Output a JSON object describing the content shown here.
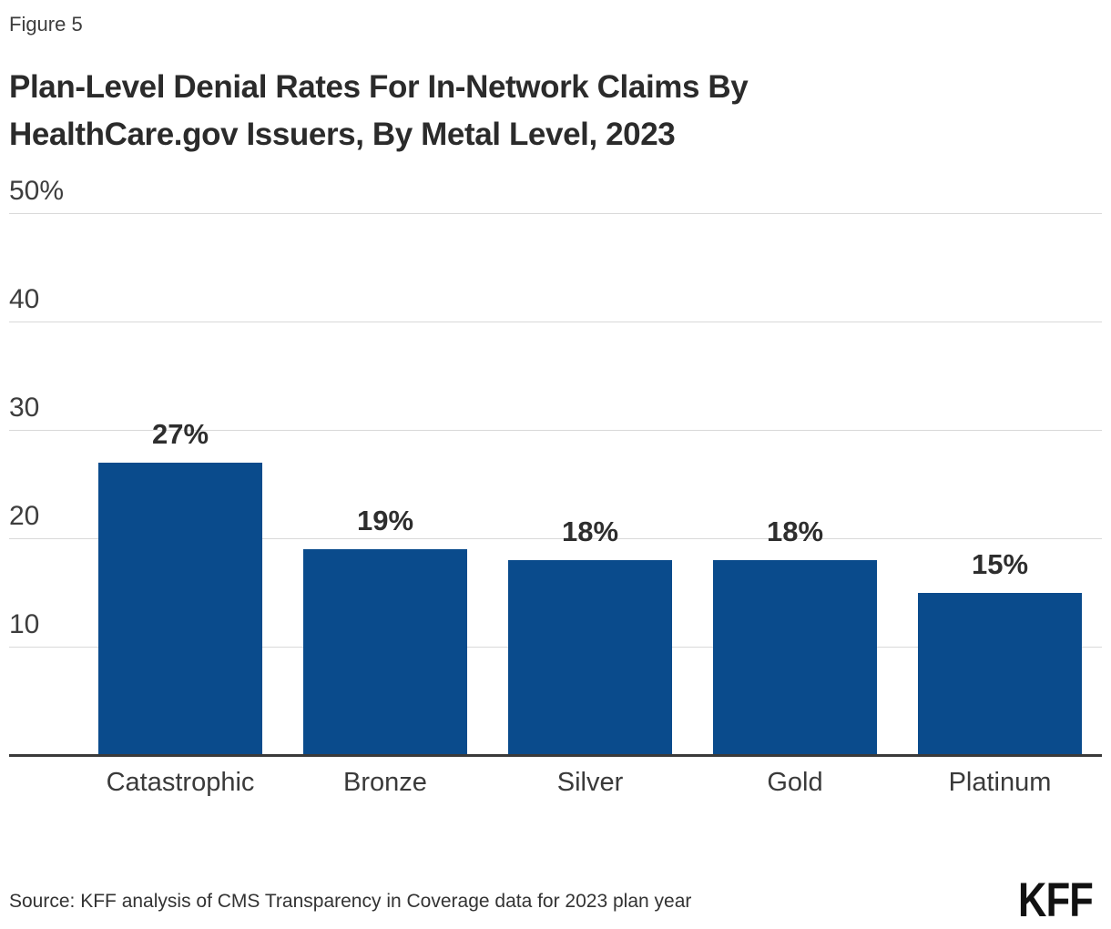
{
  "figure_label": "Figure 5",
  "title": "Plan-Level Denial Rates For In-Network Claims By HealthCare.gov Issuers, By Metal Level, 2023",
  "source": "Source: KFF analysis of CMS Transparency in Coverage data for 2023 plan year",
  "logo_text": "KFF",
  "colors": {
    "bar": "#0a4b8c",
    "gridline": "#d9d9d9",
    "axis": "#3a3a3a",
    "title_text": "#2b2b2b",
    "label_text": "#3a3a3a"
  },
  "chart_data": {
    "type": "bar",
    "title": "Plan-Level Denial Rates For In-Network Claims By HealthCare.gov Issuers, By Metal Level, 2023",
    "categories": [
      "Catastrophic",
      "Bronze",
      "Silver",
      "Gold",
      "Platinum"
    ],
    "values": [
      27,
      19,
      18,
      18,
      15
    ],
    "data_labels": [
      "27%",
      "19%",
      "18%",
      "18%",
      "15%"
    ],
    "xlabel": "",
    "ylabel": "",
    "ylim": [
      0,
      50
    ],
    "yticks": [
      {
        "value": 50,
        "label": "50%"
      },
      {
        "value": 40,
        "label": "40"
      },
      {
        "value": 30,
        "label": "30"
      },
      {
        "value": 20,
        "label": "20"
      },
      {
        "value": 10,
        "label": "10"
      }
    ],
    "grid": true,
    "legend": false,
    "bar_color": "#0a4b8c"
  }
}
